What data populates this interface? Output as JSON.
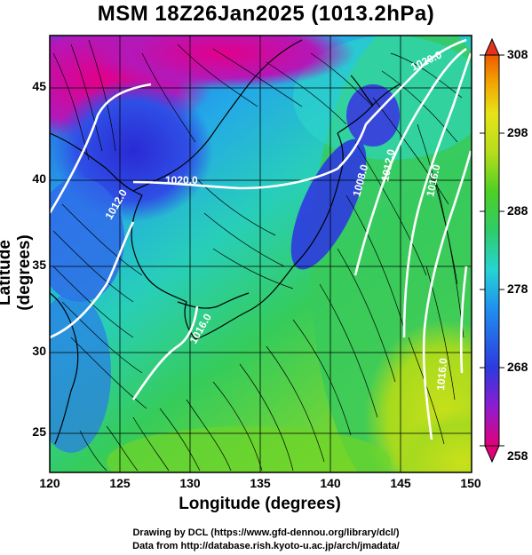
{
  "title": "MSM 18Z26Jan2025 (1013.2hPa)",
  "axes": {
    "xlabel": "Longitude (degrees)",
    "ylabel": "Latitude  (degrees)",
    "xticks": [
      "120",
      "125",
      "130",
      "135",
      "140",
      "145",
      "150"
    ],
    "yticks": [
      "45",
      "40",
      "35",
      "30",
      "25"
    ]
  },
  "colorbar": {
    "ticks": [
      "308",
      "298",
      "288",
      "278",
      "268",
      "258"
    ],
    "colors": [
      "#e2007a",
      "#8e1cd0",
      "#2d3ae0",
      "#1f8ff0",
      "#26d4d4",
      "#2fcc6a",
      "#4cd024",
      "#b6dd1a",
      "#e7e418",
      "#f2a400",
      "#ee5a00",
      "#e7331e"
    ]
  },
  "contours": {
    "labels": [
      "1020.0",
      "1020.0",
      "1012.0",
      "1012.0",
      "1016.0",
      "1016.0",
      "1016.0",
      "1008.0"
    ]
  },
  "credits": {
    "line1": "Drawing by DCL (https://www.gfd-dennou.org/library/dcl/)",
    "line2": "Data from http://database.rish.kyoto-u.ac.jp/arch/jmadata/"
  }
}
